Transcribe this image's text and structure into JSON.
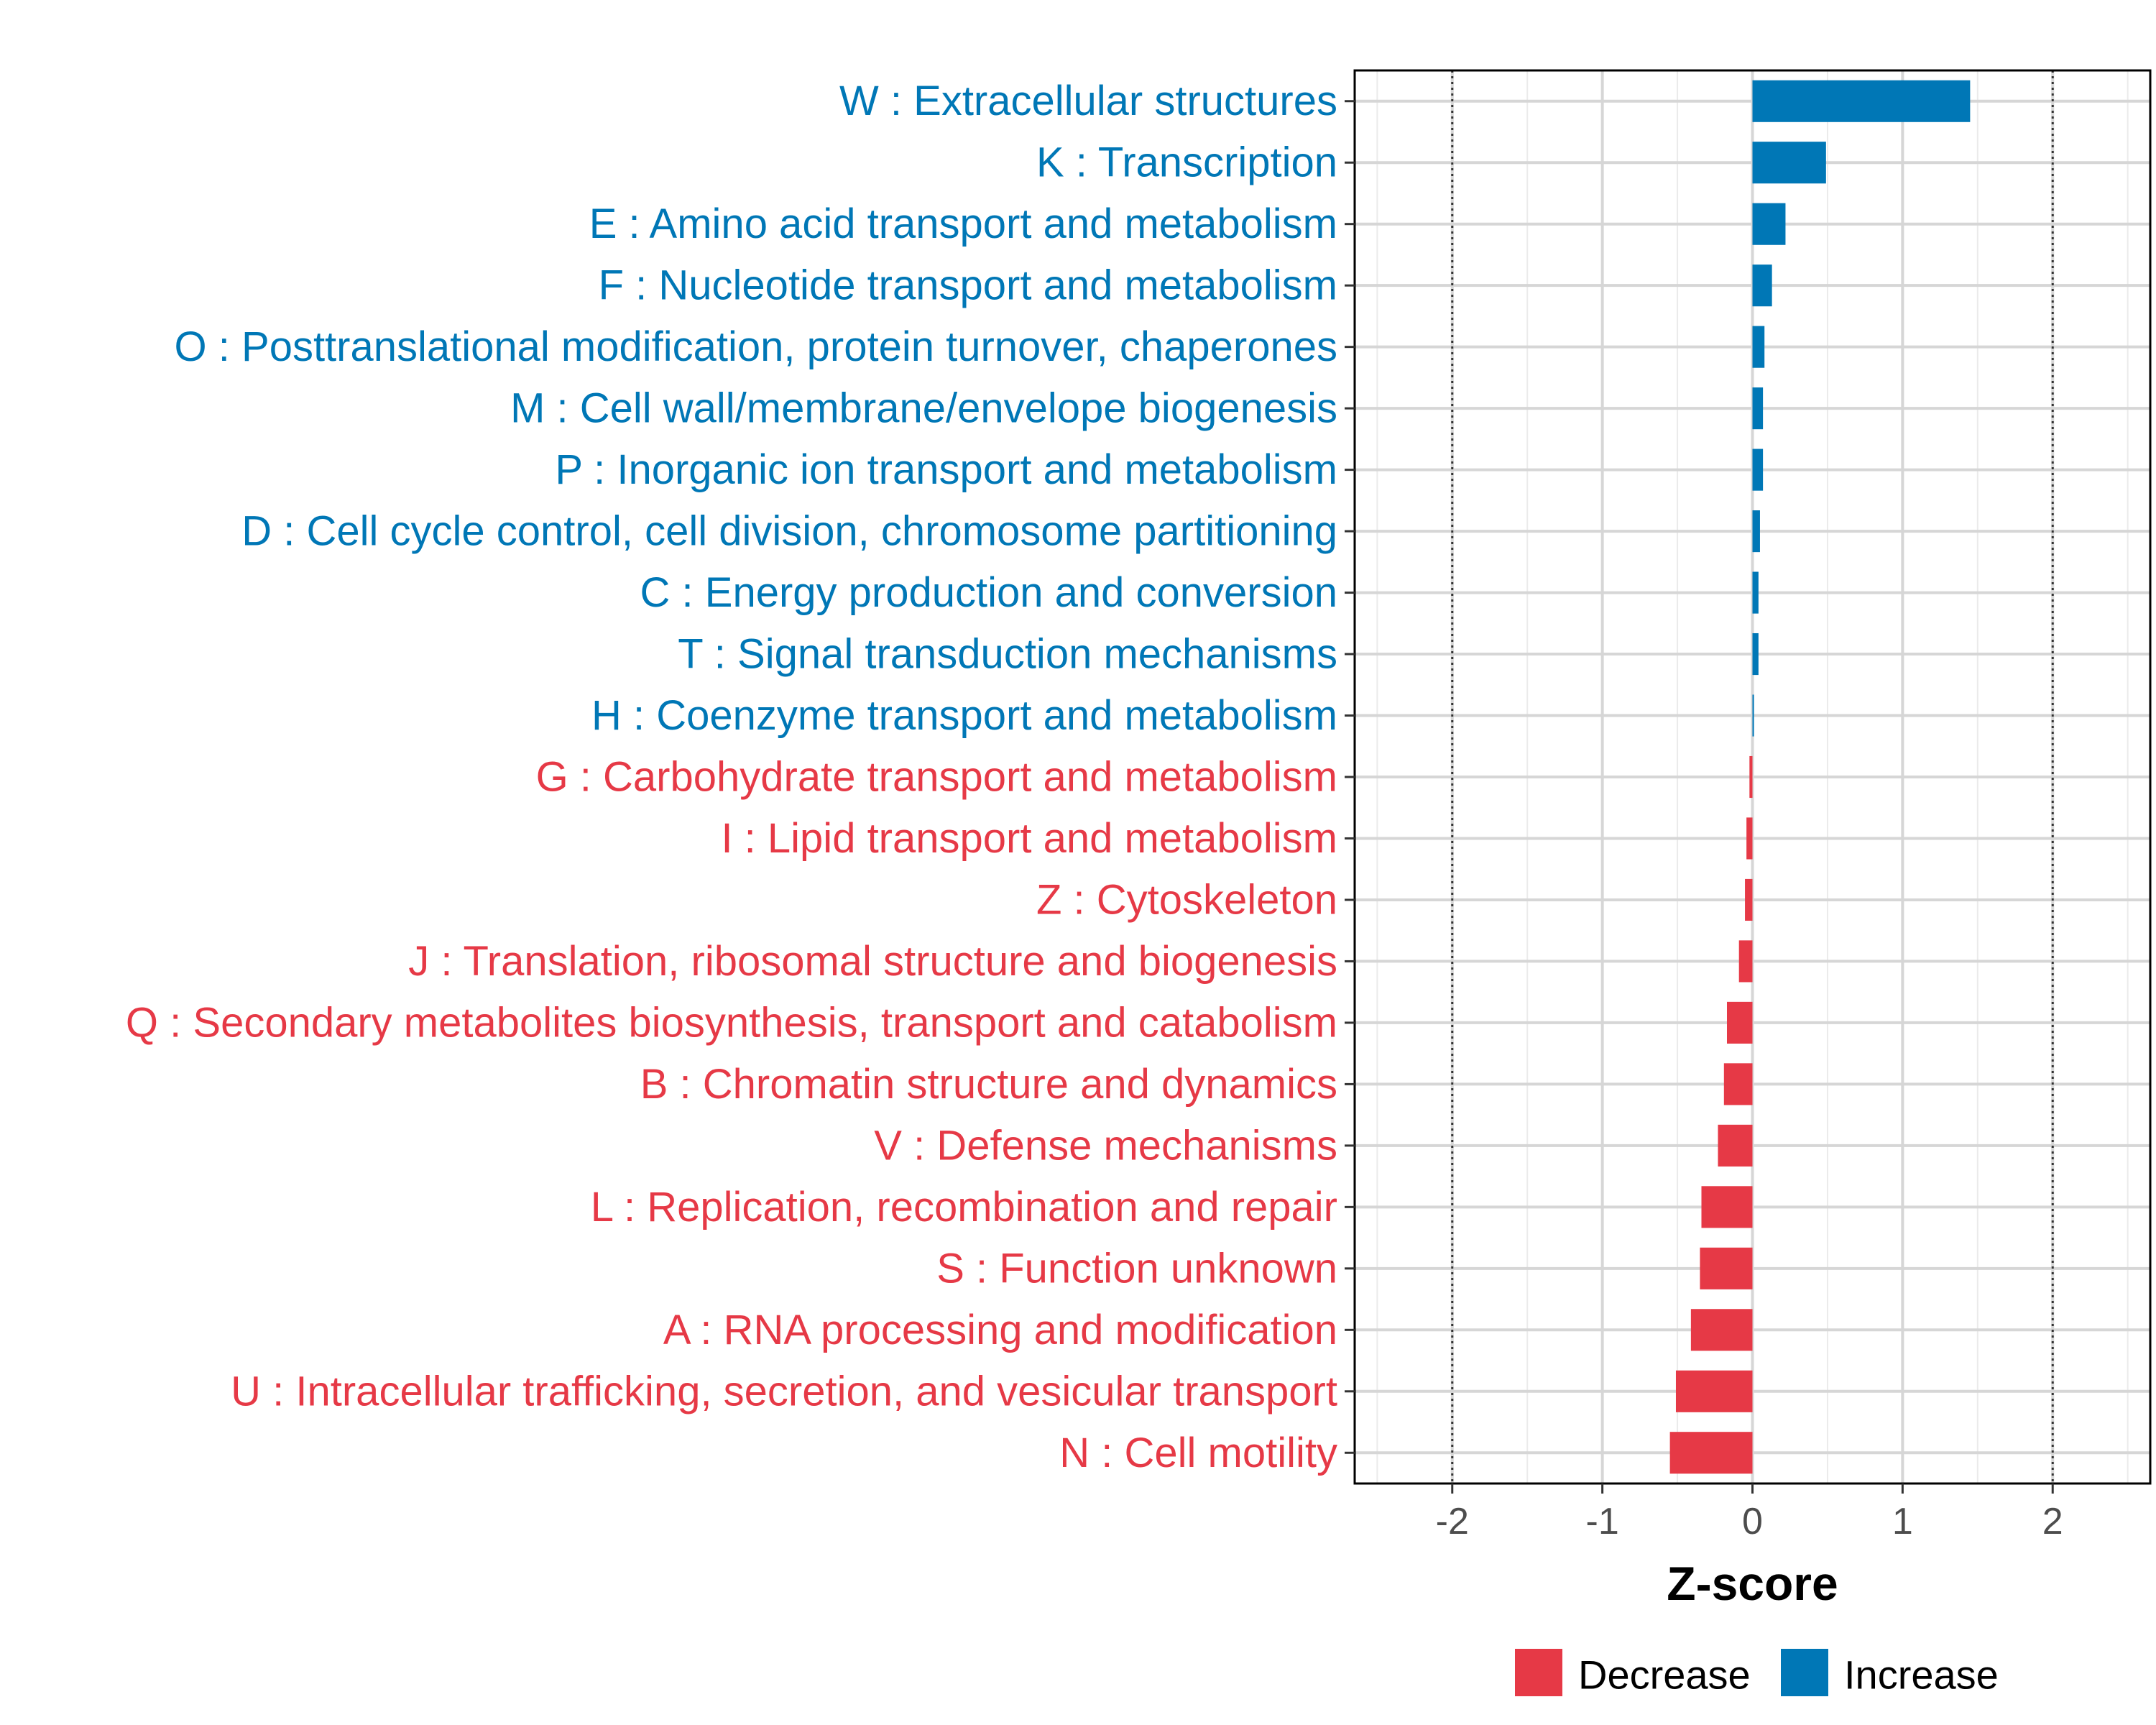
{
  "chart_data": {
    "type": "bar",
    "orientation": "horizontal",
    "title": "",
    "xlabel": "Z-score",
    "ylabel": "",
    "xlim": [
      -2.65,
      2.65
    ],
    "xticks": [
      -2,
      -1,
      0,
      1,
      2
    ],
    "xtick_labels": [
      "-2",
      "-1",
      "0",
      "1",
      "2"
    ],
    "reference_lines": [
      -2,
      2
    ],
    "grid": true,
    "categories": [
      "W : Extracellular structures",
      "K : Transcription",
      "E : Amino acid transport and metabolism",
      "F : Nucleotide transport and metabolism",
      "O : Posttranslational modification, protein turnover, chaperones",
      "M : Cell wall/membrane/envelope biogenesis",
      "P : Inorganic ion transport and metabolism",
      "D : Cell cycle control, cell division, chromosome partitioning",
      "C : Energy production and conversion",
      "T : Signal transduction mechanisms",
      "H : Coenzyme transport and metabolism",
      "G : Carbohydrate transport and metabolism",
      "I : Lipid transport and metabolism",
      "Z : Cytoskeleton",
      "J : Translation, ribosomal structure and biogenesis",
      "Q : Secondary metabolites biosynthesis, transport and catabolism",
      "B : Chromatin structure and dynamics",
      "V : Defense mechanisms",
      "L : Replication, recombination and repair",
      "S : Function unknown",
      "A : RNA processing and modification",
      "U : Intracellular trafficking, secretion, and vesicular transport",
      "N : Cell motility"
    ],
    "values": [
      1.45,
      0.49,
      0.22,
      0.13,
      0.08,
      0.07,
      0.07,
      0.05,
      0.04,
      0.04,
      0.01,
      -0.02,
      -0.04,
      -0.05,
      -0.09,
      -0.17,
      -0.19,
      -0.23,
      -0.34,
      -0.35,
      -0.41,
      -0.51,
      -0.55
    ],
    "groups": [
      "Increase",
      "Increase",
      "Increase",
      "Increase",
      "Increase",
      "Increase",
      "Increase",
      "Increase",
      "Increase",
      "Increase",
      "Increase",
      "Decrease",
      "Decrease",
      "Decrease",
      "Decrease",
      "Decrease",
      "Decrease",
      "Decrease",
      "Decrease",
      "Decrease",
      "Decrease",
      "Decrease",
      "Decrease"
    ],
    "legend": {
      "position": "bottom",
      "entries": [
        {
          "label": "Decrease",
          "color": "#e63946"
        },
        {
          "label": "Increase",
          "color": "#0077b6"
        }
      ]
    },
    "colors": {
      "Decrease": "#e63946",
      "Increase": "#0077b6"
    }
  }
}
